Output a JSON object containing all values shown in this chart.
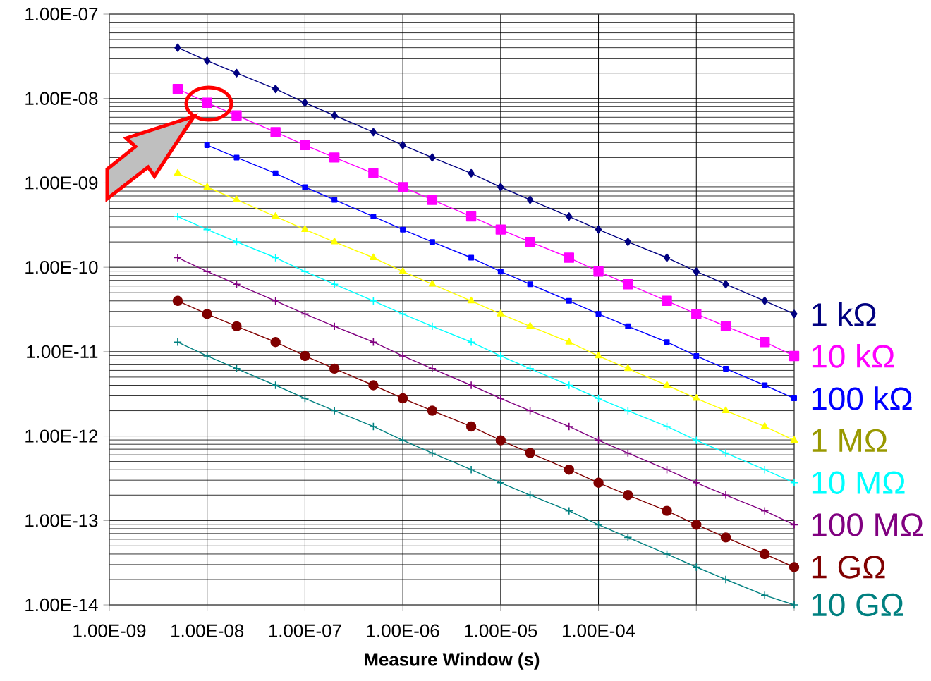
{
  "chart_data": {
    "type": "line",
    "xlabel": "Measure Window (s)",
    "log": "xy",
    "grid": true,
    "x": [
      5e-09,
      1e-08,
      2e-08,
      5e-08,
      1e-07,
      2e-07,
      5e-07,
      1e-06,
      2e-06,
      5e-06,
      1e-05,
      2e-05,
      5e-05,
      0.0001,
      0.0002,
      0.0005,
      0.001,
      0.002,
      0.005,
      0.01
    ],
    "xlim": [
      1e-09,
      0.01
    ],
    "ylim": [
      1e-14,
      1e-07
    ],
    "xticks": [
      {
        "value": 1e-09,
        "label": "1.00E-09"
      },
      {
        "value": 1e-08,
        "label": "1.00E-08"
      },
      {
        "value": 1e-07,
        "label": "1.00E-07"
      },
      {
        "value": 1e-06,
        "label": "1.00E-06"
      },
      {
        "value": 1e-05,
        "label": "1.00E-05"
      },
      {
        "value": 0.0001,
        "label": "1.00E-04"
      },
      {
        "value": 0.001,
        "label": null
      },
      {
        "value": 0.01,
        "label": null
      }
    ],
    "yticks": [
      {
        "value": 1e-14,
        "label": "1.00E-14"
      },
      {
        "value": 1e-13,
        "label": "1.00E-13"
      },
      {
        "value": 1e-12,
        "label": "1.00E-12"
      },
      {
        "value": 1e-11,
        "label": "1.00E-11"
      },
      {
        "value": 1e-10,
        "label": "1.00E-10"
      },
      {
        "value": 1e-09,
        "label": "1.00E-09"
      },
      {
        "value": 1e-08,
        "label": "1.00E-08"
      },
      {
        "value": 1e-07,
        "label": "1.00E-07"
      }
    ],
    "series": [
      {
        "name": "1 kΩ",
        "color": "#000080",
        "marker": "diamond",
        "values": [
          4e-08,
          2.8e-08,
          2e-08,
          1.3e-08,
          8.9e-09,
          6.3e-09,
          4e-09,
          2.8e-09,
          2e-09,
          1.3e-09,
          8.9e-10,
          6.3e-10,
          4e-10,
          2.8e-10,
          2e-10,
          1.3e-10,
          8.9e-11,
          6.3e-11,
          4e-11,
          2.8e-11
        ]
      },
      {
        "name": "10 kΩ",
        "color": "#ff00ff",
        "marker": "square",
        "values": [
          1.3e-08,
          8.9e-09,
          6.3e-09,
          4e-09,
          2.8e-09,
          2e-09,
          1.3e-09,
          8.9e-10,
          6.3e-10,
          4e-10,
          2.8e-10,
          2e-10,
          1.3e-10,
          8.9e-11,
          6.3e-11,
          4e-11,
          2.8e-11,
          2e-11,
          1.3e-11,
          8.9e-12
        ]
      },
      {
        "name": "100 kΩ",
        "color": "#0000ff",
        "marker": "square",
        "values": [
          null,
          2.8e-09,
          2e-09,
          1.3e-09,
          8.9e-10,
          6.3e-10,
          4e-10,
          2.8e-10,
          2e-10,
          1.3e-10,
          8.9e-11,
          6.3e-11,
          4e-11,
          2.8e-11,
          2e-11,
          1.3e-11,
          8.9e-12,
          6.3e-12,
          4e-12,
          2.8e-12
        ]
      },
      {
        "name": "1 MΩ",
        "color": "#ffff00",
        "marker": "triangle",
        "values": [
          1.3e-09,
          8.9e-10,
          6.3e-10,
          4e-10,
          2.8e-10,
          2e-10,
          1.3e-10,
          8.9e-11,
          6.3e-11,
          4e-11,
          2.8e-11,
          2e-11,
          1.3e-11,
          8.9e-12,
          6.3e-12,
          4e-12,
          2.8e-12,
          2e-12,
          1.3e-12,
          8.9e-13
        ]
      },
      {
        "name": "10 MΩ",
        "color": "#00ffff",
        "marker": "cross",
        "values": [
          4e-10,
          2.8e-10,
          2e-10,
          1.3e-10,
          8.9e-11,
          6.3e-11,
          4e-11,
          2.8e-11,
          2e-11,
          1.3e-11,
          8.9e-12,
          6.3e-12,
          4e-12,
          2.8e-12,
          2e-12,
          1.3e-12,
          8.9e-13,
          6.3e-13,
          4e-13,
          2.8e-13
        ]
      },
      {
        "name": "100 MΩ",
        "color": "#800080",
        "marker": "cross",
        "values": [
          1.3e-10,
          8.9e-11,
          6.3e-11,
          4e-11,
          2.8e-11,
          2e-11,
          1.3e-11,
          8.9e-12,
          6.3e-12,
          4e-12,
          2.8e-12,
          2e-12,
          1.3e-12,
          8.9e-13,
          6.3e-13,
          4e-13,
          2.8e-13,
          2e-13,
          1.3e-13,
          8.9e-14
        ]
      },
      {
        "name": "1 GΩ",
        "color": "#800000",
        "marker": "circle",
        "values": [
          4e-11,
          2.8e-11,
          2e-11,
          1.3e-11,
          8.9e-12,
          6.3e-12,
          4e-12,
          2.8e-12,
          2e-12,
          1.3e-12,
          8.9e-13,
          6.3e-13,
          4e-13,
          2.8e-13,
          2e-13,
          1.3e-13,
          8.9e-14,
          6.3e-14,
          4e-14,
          2.8e-14
        ]
      },
      {
        "name": "10 GΩ",
        "color": "#008080",
        "marker": "cross",
        "values": [
          1.3e-11,
          8.9e-12,
          6.3e-12,
          4e-12,
          2.8e-12,
          2e-12,
          1.3e-12,
          8.9e-13,
          6.3e-13,
          4e-13,
          2.8e-13,
          2e-13,
          1.3e-13,
          8.9e-14,
          6.3e-14,
          4e-14,
          2.8e-14,
          2e-14,
          1.3e-14,
          1e-14
        ]
      }
    ]
  }
}
